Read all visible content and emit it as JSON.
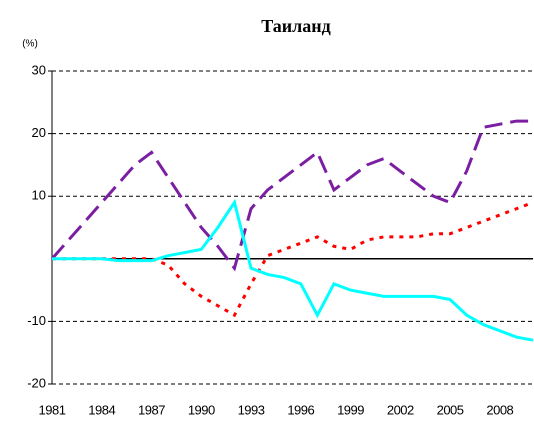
{
  "chart_data": {
    "type": "line",
    "title": "Таиланд",
    "y_label": "(%)",
    "x": [
      1981,
      1982,
      1983,
      1984,
      1985,
      1986,
      1987,
      1988,
      1989,
      1990,
      1991,
      1992,
      1993,
      1994,
      1995,
      1996,
      1997,
      1998,
      1999,
      2000,
      2001,
      2002,
      2003,
      2004,
      2005,
      2006,
      2007,
      2008,
      2009,
      2010
    ],
    "xlim": [
      1981,
      2010
    ],
    "xticks": [
      1981,
      1984,
      1987,
      1990,
      1993,
      1996,
      1999,
      2002,
      2005,
      2008
    ],
    "ylim": [
      -20,
      30
    ],
    "yticks": [
      -20,
      -10,
      10,
      20,
      30
    ],
    "grid": true,
    "series": [
      {
        "color": "#7b1fa2",
        "dash": "18,8",
        "values": [
          0,
          3,
          6,
          9,
          12,
          15,
          17,
          13,
          9,
          5,
          2,
          -1.5,
          8,
          11,
          13,
          15,
          17,
          11,
          13,
          15,
          16,
          14,
          12,
          10,
          9,
          14,
          21,
          21.5,
          22,
          22
        ]
      },
      {
        "color": "#ff0000",
        "dash": "4,6",
        "values": [
          0,
          0,
          0,
          0,
          0,
          0,
          0,
          -1,
          -4,
          -6,
          -7.5,
          -9,
          -4,
          0.5,
          1.5,
          2.5,
          3.5,
          2,
          1.5,
          3,
          3.5,
          3.5,
          3.5,
          4,
          4,
          5,
          6,
          7,
          8,
          9
        ]
      },
      {
        "color": "#00ffff",
        "dash": "none",
        "values": [
          0,
          0,
          0,
          0,
          -0.3,
          -0.3,
          -0.3,
          0.5,
          1,
          1.5,
          5,
          9,
          -1.5,
          -2.5,
          -3,
          -4,
          -9,
          -4,
          -5,
          -5.5,
          -6,
          -6,
          -6,
          -6,
          -6.5,
          -9,
          -10.5,
          -11.5,
          -12.5,
          -13
        ]
      }
    ]
  }
}
